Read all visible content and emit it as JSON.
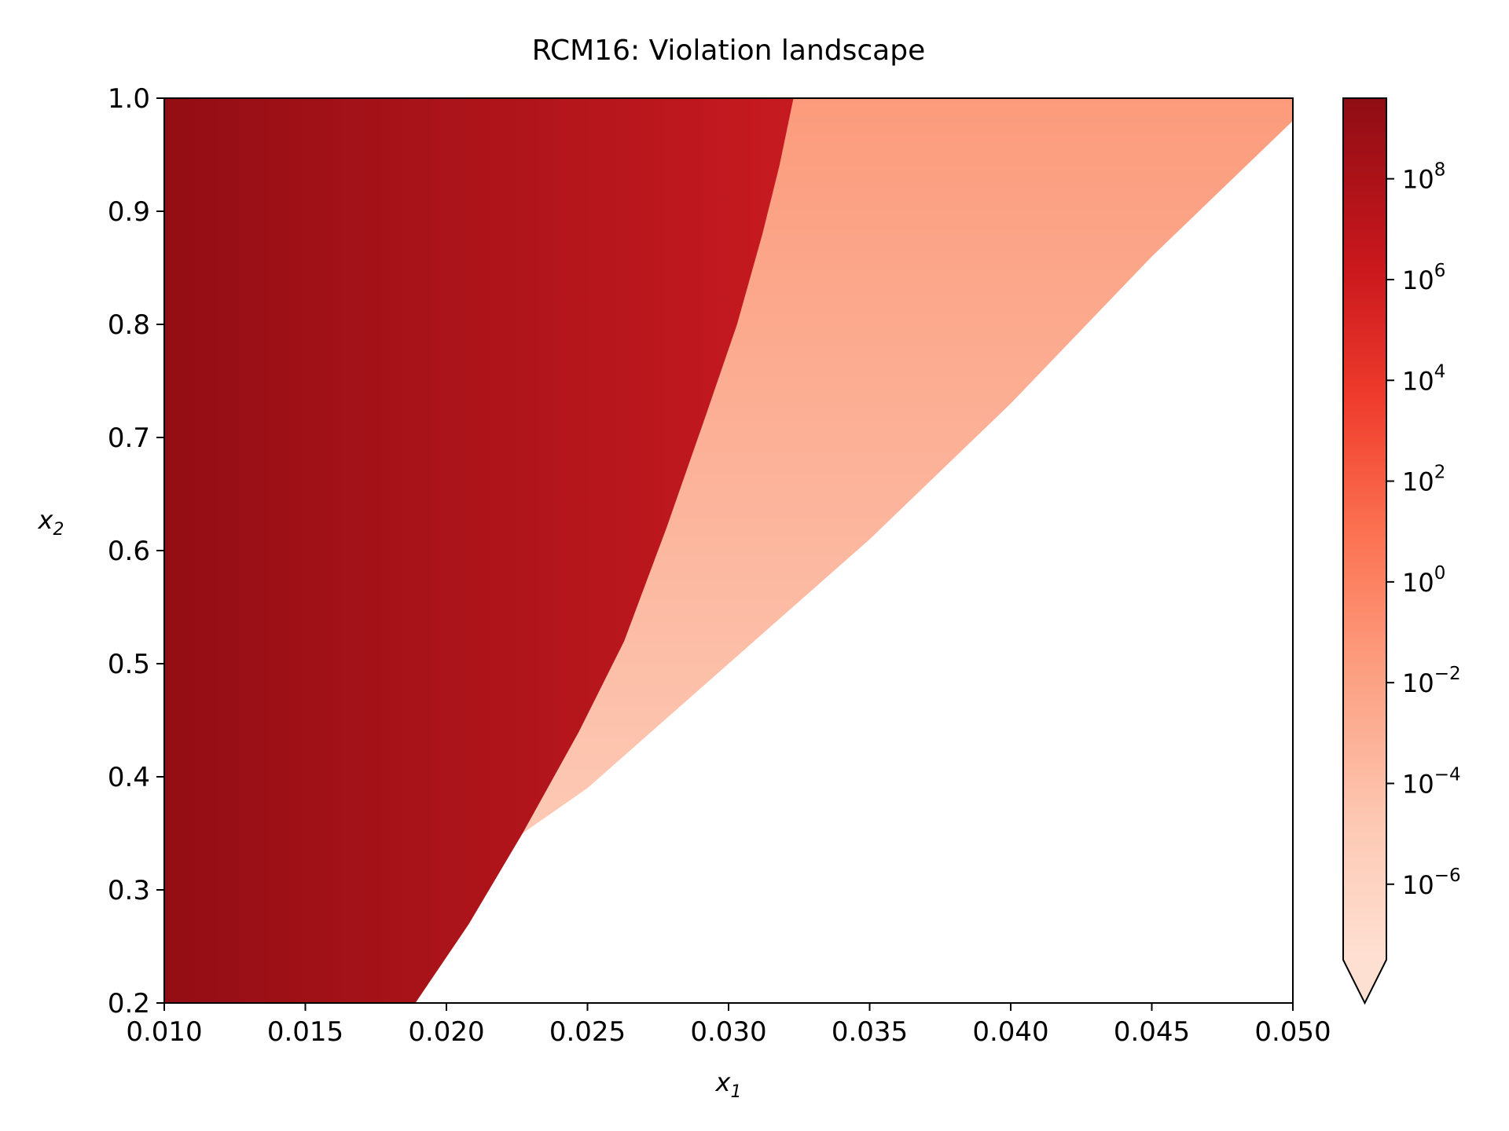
{
  "chart_data": {
    "type": "heatmap",
    "title": "RCM16: Violation landscape",
    "xlabel": "x",
    "xlabel_sub": "1",
    "ylabel": "x",
    "ylabel_sub": "2",
    "xlim": [
      0.01,
      0.05
    ],
    "ylim": [
      0.2,
      1.0
    ],
    "xticks": [
      0.01,
      0.015,
      0.02,
      0.025,
      0.03,
      0.035,
      0.04,
      0.045,
      0.05
    ],
    "xtick_labels": [
      "0.010",
      "0.015",
      "0.020",
      "0.025",
      "0.030",
      "0.035",
      "0.040",
      "0.045",
      "0.050"
    ],
    "yticks": [
      0.2,
      0.3,
      0.4,
      0.5,
      0.6,
      0.7,
      0.8,
      0.9,
      1.0
    ],
    "ytick_labels": [
      "0.2",
      "0.3",
      "0.4",
      "0.5",
      "0.6",
      "0.7",
      "0.8",
      "0.9",
      "1.0"
    ],
    "colorbar": {
      "scale": "log",
      "colormap": "Reds",
      "log_range": [
        -7.5,
        9.6
      ],
      "extend": "min",
      "ticks": [
        {
          "exp": 8,
          "label": "8"
        },
        {
          "exp": 6,
          "label": "6"
        },
        {
          "exp": 4,
          "label": "4"
        },
        {
          "exp": 2,
          "label": "2"
        },
        {
          "exp": 0,
          "label": "0"
        },
        {
          "exp": -2,
          "label": "−2"
        },
        {
          "exp": -4,
          "label": "−4"
        },
        {
          "exp": -6,
          "label": "−6"
        }
      ],
      "tick_base": "10"
    },
    "regions": {
      "high_violation_boundary": [
        [
          0.0189,
          0.2
        ],
        [
          0.0208,
          0.27
        ],
        [
          0.0227,
          0.35
        ],
        [
          0.0247,
          0.44
        ],
        [
          0.0263,
          0.52
        ],
        [
          0.0278,
          0.62
        ],
        [
          0.0292,
          0.72
        ],
        [
          0.0303,
          0.8
        ],
        [
          0.0312,
          0.88
        ],
        [
          0.0318,
          0.94
        ],
        [
          0.0323,
          1.0
        ]
      ],
      "feasible_boundary": [
        [
          0.0227,
          0.35
        ],
        [
          0.025,
          0.39
        ],
        [
          0.03,
          0.5
        ],
        [
          0.035,
          0.61
        ],
        [
          0.04,
          0.73
        ],
        [
          0.045,
          0.86
        ],
        [
          0.05,
          0.98
        ]
      ]
    },
    "colors": {
      "dark_red": "#930e14",
      "mid_red": "#c61a20",
      "salmon_top": "#fc9b7c",
      "salmon_bottom": "#fdd4c2",
      "feasible": "#ffffff"
    }
  }
}
